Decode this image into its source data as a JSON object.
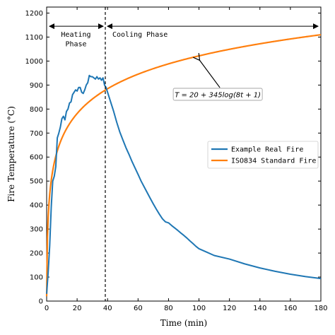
{
  "chart_data": {
    "type": "line",
    "title": "",
    "xlabel": "Time (min)",
    "ylabel": "Fire Temperature (°C)",
    "xlim": [
      0,
      180
    ],
    "ylim": [
      0,
      1225
    ],
    "x_ticks": [
      0,
      20,
      40,
      60,
      80,
      100,
      120,
      140,
      160,
      180
    ],
    "y_ticks": [
      0,
      100,
      200,
      300,
      400,
      500,
      600,
      700,
      800,
      900,
      1000,
      1100,
      1200
    ],
    "grid": false,
    "legend_position": "center-right",
    "phase_divider_x": 38.5,
    "phase_labels": {
      "heating": [
        "Heating",
        "Phase"
      ],
      "cooling": "Cooling Phase"
    },
    "annotation": {
      "text": "T = 20 + 345log(8t + 1)",
      "text_at": [
        110,
        860
      ],
      "arrow_to": [
        100,
        1012
      ]
    },
    "series": [
      {
        "name": "Example Real Fire",
        "color": "#1f77b4",
        "x": [
          0,
          1,
          2,
          3,
          4,
          5,
          6,
          7,
          8,
          9,
          10,
          11,
          12,
          13,
          14,
          15,
          16,
          17,
          18,
          19,
          20,
          21,
          22,
          23,
          24,
          25,
          26,
          27,
          28,
          29,
          30,
          31,
          32,
          33,
          34,
          35,
          36,
          37,
          38,
          39,
          40,
          42,
          44,
          46,
          48,
          50,
          52,
          54,
          56,
          58,
          60,
          62,
          64,
          66,
          68,
          70,
          72,
          74,
          76,
          78,
          80,
          82,
          84,
          86,
          88,
          90,
          92,
          94,
          96,
          98,
          100,
          105,
          110,
          120,
          130,
          140,
          150,
          160,
          170,
          180
        ],
        "y": [
          30,
          120,
          230,
          390,
          500,
          520,
          560,
          680,
          700,
          725,
          760,
          770,
          755,
          790,
          800,
          825,
          830,
          860,
          870,
          880,
          875,
          890,
          890,
          870,
          865,
          880,
          900,
          910,
          940,
          935,
          935,
          930,
          925,
          935,
          925,
          930,
          920,
          930,
          900,
          890,
          870,
          830,
          790,
          745,
          705,
          672,
          640,
          612,
          582,
          555,
          528,
          500,
          476,
          452,
          428,
          405,
          383,
          362,
          343,
          330,
          326,
          315,
          305,
          295,
          284,
          274,
          263,
          251,
          240,
          228,
          218,
          204,
          190,
          175,
          155,
          138,
          124,
          112,
          102,
          94
        ]
      },
      {
        "name": "ISO834 Standard Fire",
        "color": "#ff7f0e",
        "formula": "T = 20 + 345log(8t + 1)"
      }
    ]
  }
}
